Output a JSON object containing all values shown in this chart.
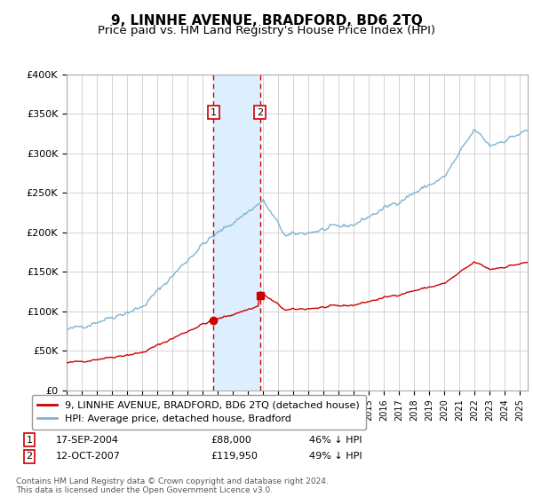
{
  "title": "9, LINNHE AVENUE, BRADFORD, BD6 2TQ",
  "subtitle": "Price paid vs. HM Land Registry's House Price Index (HPI)",
  "title_fontsize": 11,
  "subtitle_fontsize": 9.5,
  "background_color": "#ffffff",
  "grid_color": "#cccccc",
  "hpi_color": "#7fb3d3",
  "price_color": "#cc0000",
  "shade_color": "#ddeeff",
  "purchase_1_date": 2004.71,
  "purchase_1_price": 88000,
  "purchase_1_label": "1",
  "purchase_2_date": 2007.79,
  "purchase_2_price": 119950,
  "purchase_2_label": "2",
  "legend_entries": [
    "9, LINNHE AVENUE, BRADFORD, BD6 2TQ (detached house)",
    "HPI: Average price, detached house, Bradford"
  ],
  "footer": "Contains HM Land Registry data © Crown copyright and database right 2024.\nThis data is licensed under the Open Government Licence v3.0.",
  "xmin": 1995.0,
  "xmax": 2025.5,
  "ylim": [
    0,
    400000
  ],
  "yticks": [
    0,
    50000,
    100000,
    150000,
    200000,
    250000,
    300000,
    350000,
    400000
  ],
  "ytick_labels": [
    "£0",
    "£50K",
    "£100K",
    "£150K",
    "£200K",
    "£250K",
    "£300K",
    "£350K",
    "£400K"
  ]
}
